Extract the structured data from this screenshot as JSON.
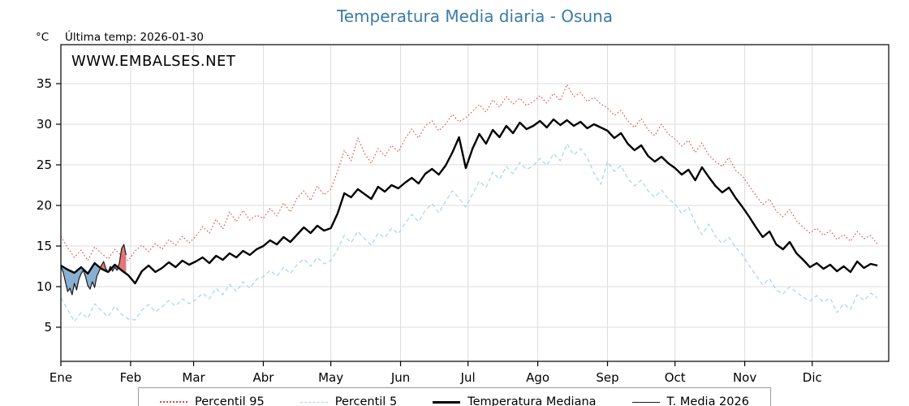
{
  "chart_data": {
    "type": "line",
    "title": "Temperatura Media diaria - Osuna",
    "ylabel": "°C",
    "annotation": "Última temp: 2026-01-30",
    "watermark": "WWW.EMBALSES.NET",
    "xlim": [
      0,
      368
    ],
    "ylim": [
      0.8,
      39.8
    ],
    "yticks": [
      5,
      10,
      15,
      20,
      25,
      30,
      35
    ],
    "xticks": {
      "labels": [
        "Ene",
        "Feb",
        "Mar",
        "Abr",
        "May",
        "Jun",
        "Jul",
        "Ago",
        "Sep",
        "Oct",
        "Nov",
        "Dic"
      ],
      "days": [
        0,
        31,
        59,
        90,
        120,
        151,
        181,
        212,
        243,
        273,
        304,
        334
      ]
    },
    "colors": {
      "title": "#3a7ca8",
      "watermark": "#2e7bc0",
      "grid": "#dcdcdc",
      "fill_below": "#4a85b8",
      "fill_above": "#d03030"
    },
    "series": [
      {
        "name": "Percentil 95",
        "color": "#e0463f",
        "style": "dotted",
        "dash": "1.6 2.6",
        "width": 1.1,
        "x_step": 3,
        "values": [
          16.2,
          14.8,
          13.6,
          14.5,
          13.2,
          14.9,
          14.1,
          13.4,
          14.6,
          13.8,
          13.2,
          14.4,
          15.1,
          14.3,
          15.3,
          14.6,
          15.8,
          15.1,
          16.2,
          15.4,
          16.2,
          17.4,
          16.6,
          18.3,
          17.1,
          19.2,
          18.0,
          19.4,
          18.2,
          18.8,
          18.4,
          19.6,
          18.7,
          20.3,
          19.2,
          20.9,
          21.8,
          20.6,
          22.4,
          21.3,
          22.0,
          24.2,
          26.8,
          25.5,
          28.3,
          26.4,
          25.2,
          27.0,
          26.1,
          27.4,
          26.6,
          28.2,
          29.4,
          28.3,
          29.8,
          30.4,
          29.2,
          30.0,
          31.2,
          30.3,
          30.8,
          31.6,
          32.4,
          31.5,
          33.0,
          32.1,
          33.4,
          32.5,
          33.2,
          32.3,
          32.8,
          33.5,
          32.6,
          33.8,
          32.9,
          34.9,
          33.4,
          33.9,
          32.8,
          33.3,
          32.5,
          32.0,
          31.1,
          31.7,
          30.4,
          29.6,
          30.7,
          29.3,
          28.6,
          30.0,
          28.8,
          28.2,
          27.3,
          28.0,
          26.5,
          27.7,
          26.2,
          25.4,
          24.8,
          25.9,
          24.3,
          23.6,
          22.4,
          21.2,
          20.1,
          20.8,
          19.3,
          18.6,
          19.5,
          18.1,
          17.3,
          16.6,
          17.2,
          16.3,
          16.9,
          15.8,
          16.4,
          15.6,
          16.8,
          15.9,
          16.3,
          15.2
        ]
      },
      {
        "name": "Percentil 5",
        "color": "#a5d5e8",
        "style": "dashed",
        "dash": "5 3.5",
        "width": 1.2,
        "x_step": 3,
        "values": [
          8.6,
          7.2,
          5.7,
          6.8,
          6.1,
          7.9,
          7.0,
          6.3,
          7.6,
          6.6,
          6.0,
          5.9,
          7.1,
          7.8,
          6.9,
          7.5,
          8.3,
          7.6,
          8.5,
          7.9,
          8.4,
          9.2,
          8.5,
          9.8,
          9.0,
          10.3,
          9.4,
          10.6,
          9.8,
          10.9,
          11.2,
          12.0,
          11.3,
          12.4,
          11.6,
          12.7,
          13.4,
          12.5,
          13.6,
          12.8,
          13.2,
          14.6,
          16.3,
          15.4,
          16.8,
          15.9,
          15.1,
          16.6,
          16.0,
          17.2,
          16.5,
          17.8,
          18.9,
          18.0,
          19.4,
          20.2,
          19.1,
          20.5,
          21.8,
          20.9,
          19.8,
          21.4,
          23.0,
          22.2,
          24.1,
          23.2,
          24.8,
          23.9,
          25.3,
          24.4,
          24.9,
          25.8,
          24.9,
          26.4,
          25.5,
          27.6,
          26.2,
          27.0,
          25.9,
          24.0,
          22.6,
          25.4,
          24.2,
          24.9,
          23.3,
          22.4,
          23.1,
          21.8,
          21.0,
          21.9,
          20.8,
          20.2,
          19.0,
          19.8,
          17.9,
          16.4,
          17.7,
          16.2,
          15.3,
          16.1,
          14.8,
          13.9,
          12.6,
          11.4,
          10.2,
          11.0,
          9.6,
          9.1,
          10.0,
          9.3,
          8.7,
          8.2,
          8.9,
          8.1,
          8.6,
          6.8,
          7.9,
          7.2,
          9.0,
          8.3,
          9.2,
          8.6
        ]
      },
      {
        "name": "Temperatura Mediana",
        "color": "#000000",
        "style": "solid",
        "width": 2.4,
        "x_step": 3,
        "values": [
          12.6,
          12.1,
          11.7,
          12.4,
          11.6,
          12.9,
          12.2,
          11.8,
          12.7,
          12.0,
          11.4,
          10.4,
          11.9,
          12.6,
          11.8,
          12.3,
          13.0,
          12.4,
          13.2,
          12.7,
          13.1,
          13.6,
          12.9,
          13.8,
          13.3,
          14.1,
          13.6,
          14.4,
          13.9,
          14.6,
          15.0,
          15.7,
          15.2,
          16.1,
          15.5,
          16.4,
          17.3,
          16.6,
          17.5,
          16.9,
          17.2,
          19.0,
          21.5,
          21.0,
          22.0,
          21.4,
          20.8,
          22.3,
          21.7,
          22.5,
          22.1,
          22.8,
          23.4,
          22.7,
          23.9,
          24.5,
          23.8,
          24.9,
          26.5,
          28.4,
          24.6,
          27.0,
          28.8,
          27.6,
          29.3,
          28.4,
          29.8,
          28.9,
          30.2,
          29.4,
          29.8,
          30.4,
          29.6,
          30.6,
          29.9,
          30.5,
          29.8,
          30.3,
          29.5,
          30.0,
          29.6,
          29.2,
          28.3,
          28.9,
          27.6,
          26.8,
          27.4,
          26.1,
          25.4,
          26.0,
          25.2,
          24.6,
          23.8,
          24.4,
          23.1,
          24.7,
          23.5,
          22.4,
          21.6,
          22.2,
          20.9,
          19.8,
          18.6,
          17.3,
          16.1,
          16.8,
          15.2,
          14.6,
          15.5,
          14.1,
          13.3,
          12.4,
          12.9,
          12.2,
          12.7,
          11.9,
          12.5,
          11.8,
          13.1,
          12.3,
          12.8,
          12.6
        ]
      },
      {
        "name": "T. Media 2026",
        "color": "#1a1a1a",
        "style": "solid",
        "width": 1.2,
        "x_step": 1,
        "values": [
          12.5,
          11.8,
          10.6,
          9.4,
          9.8,
          9.0,
          10.4,
          9.6,
          10.9,
          11.6,
          12.0,
          11.2,
          10.1,
          9.7,
          10.6,
          9.9,
          11.3,
          11.9,
          12.6,
          13.1,
          12.2,
          11.8,
          12.5,
          11.9,
          12.4,
          12.0,
          12.9,
          14.7,
          15.2,
          13.9
        ]
      }
    ]
  }
}
